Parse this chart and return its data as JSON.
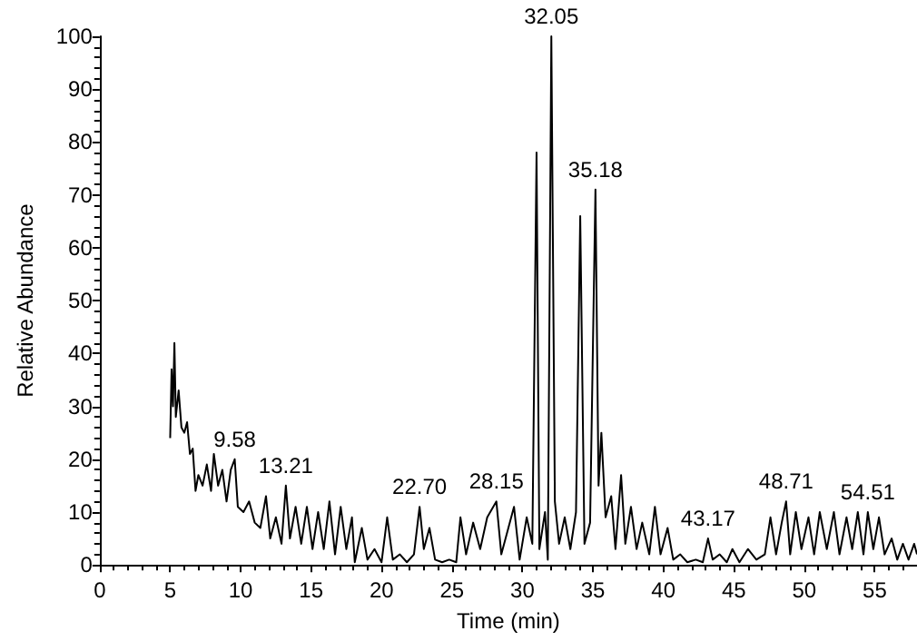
{
  "chart_data": {
    "type": "line",
    "xlabel": "Time (min)",
    "ylabel": "Relative Abundance",
    "xlim": [
      0,
      58
    ],
    "xticks": [
      0,
      5,
      10,
      15,
      20,
      25,
      30,
      35,
      40,
      45,
      50,
      55
    ],
    "ylim": [
      0,
      100
    ],
    "yticks": [
      0,
      10,
      20,
      30,
      40,
      50,
      60,
      70,
      80,
      90,
      100
    ],
    "grid": false,
    "marker": "none",
    "line_style": "solid",
    "annotations": [
      {
        "text": "9.58",
        "x": 9.58,
        "y": 20
      },
      {
        "text": "13.21",
        "x": 13.21,
        "y": 15
      },
      {
        "text": "22.70",
        "x": 22.7,
        "y": 11
      },
      {
        "text": "28.15",
        "x": 28.15,
        "y": 12
      },
      {
        "text": "32.05",
        "x": 32.05,
        "y": 100
      },
      {
        "text": "35.18",
        "x": 35.18,
        "y": 71
      },
      {
        "text": "43.17",
        "x": 43.17,
        "y": 5
      },
      {
        "text": "48.71",
        "x": 48.71,
        "y": 12
      },
      {
        "text": "54.51",
        "x": 54.51,
        "y": 10
      }
    ],
    "series": [
      {
        "color": "#000000",
        "x": [
          5.0,
          5.1,
          5.2,
          5.3,
          5.4,
          5.6,
          5.8,
          6.0,
          6.2,
          6.4,
          6.6,
          6.8,
          7.0,
          7.3,
          7.6,
          7.9,
          8.1,
          8.4,
          8.7,
          9.0,
          9.3,
          9.58,
          9.8,
          10.2,
          10.6,
          11.0,
          11.4,
          11.8,
          12.1,
          12.5,
          12.9,
          13.21,
          13.5,
          13.9,
          14.3,
          14.7,
          15.1,
          15.5,
          15.9,
          16.3,
          16.7,
          17.1,
          17.5,
          17.9,
          18.1,
          18.6,
          19.0,
          19.5,
          20.0,
          20.4,
          20.8,
          21.3,
          21.8,
          22.3,
          22.7,
          23.0,
          23.4,
          23.8,
          24.3,
          24.8,
          25.3,
          25.6,
          26.0,
          26.5,
          27.0,
          27.5,
          28.15,
          28.5,
          29.0,
          29.4,
          29.8,
          30.3,
          30.7,
          31.0,
          31.2,
          31.6,
          31.8,
          32.05,
          32.3,
          32.6,
          33.0,
          33.4,
          33.8,
          34.1,
          34.4,
          34.8,
          35.18,
          35.4,
          35.6,
          35.9,
          36.3,
          36.6,
          37.0,
          37.3,
          37.7,
          38.1,
          38.5,
          39.0,
          39.4,
          39.8,
          40.3,
          40.7,
          41.2,
          41.7,
          42.3,
          42.8,
          43.17,
          43.5,
          44.0,
          44.5,
          44.9,
          45.4,
          46.0,
          46.6,
          47.2,
          47.6,
          48.0,
          48.4,
          48.71,
          49.0,
          49.4,
          49.8,
          50.3,
          50.7,
          51.1,
          51.6,
          52.1,
          52.5,
          53.0,
          53.4,
          53.8,
          54.2,
          54.51,
          54.9,
          55.3,
          55.7,
          56.2,
          56.6,
          57.0,
          57.4,
          57.8,
          58
        ],
        "values": [
          24,
          37,
          30,
          42,
          28,
          33,
          26,
          25,
          27,
          21,
          22,
          14,
          17,
          15,
          19,
          14,
          21,
          15,
          18,
          12,
          18,
          20,
          11,
          10,
          12,
          8,
          7,
          13,
          5,
          9,
          4,
          15,
          5,
          11,
          4,
          11,
          3,
          10,
          3,
          12,
          2,
          11,
          3,
          9,
          0.5,
          7,
          1,
          3,
          0.5,
          9,
          1,
          2,
          0.5,
          2,
          11,
          3,
          7,
          1,
          0.5,
          1,
          0.5,
          9,
          2,
          8,
          3,
          9,
          12,
          2,
          7,
          11,
          1,
          9,
          4,
          78,
          3,
          10,
          1,
          100,
          12,
          4,
          9,
          3,
          10,
          66,
          4,
          8,
          71,
          15,
          25,
          9,
          13,
          3,
          17,
          4,
          11,
          3,
          8,
          2,
          11,
          2,
          7,
          1,
          2,
          0.5,
          1,
          0.5,
          5,
          1,
          2,
          0.5,
          3,
          0.5,
          3,
          1,
          2,
          9,
          2,
          8,
          12,
          2,
          10,
          3,
          9,
          2,
          10,
          3,
          10,
          2,
          9,
          3,
          10,
          2,
          10,
          3,
          9,
          2,
          5,
          1,
          4,
          1,
          4,
          2
        ]
      }
    ]
  }
}
